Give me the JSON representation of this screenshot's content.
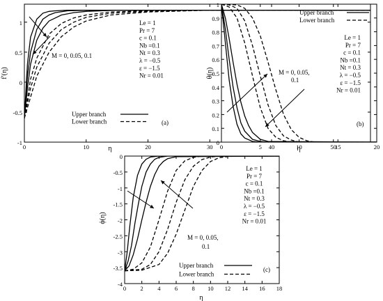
{
  "chart_data": [
    {
      "type": "line",
      "panel_label": "(a)",
      "xlabel": "η",
      "ylabel": "f′(η)",
      "xlim": [
        0,
        56
      ],
      "ylim": [
        -1,
        1.3
      ],
      "xticks": [
        "0",
        "10",
        "20",
        "30",
        "40",
        "50"
      ],
      "yticks": [
        "-1",
        "-0.5",
        "0",
        "0.5",
        "1"
      ],
      "grid": false,
      "legend_position": "bottom-right",
      "legend": [
        "Upper branch",
        "Lower branch"
      ],
      "parameters": [
        "Le = 1",
        "Pr = 7",
        "c = 0.1",
        "Nb =0.1",
        "Nt = 0.3",
        "λ = −0.5",
        "ε = −1.5",
        "Nr = 0.01"
      ],
      "annotations": [
        "M = 0, 0.05, 0.1"
      ],
      "series": [
        {
          "branch": "upper",
          "M": 0,
          "x": [
            0,
            0.5,
            1,
            2,
            3,
            4,
            5,
            7,
            10,
            15,
            25,
            56
          ],
          "y": [
            -0.6,
            0.3,
            0.75,
            1.05,
            1.15,
            1.18,
            1.19,
            1.2,
            1.2,
            1.2,
            1.2,
            1.2
          ]
        },
        {
          "branch": "upper",
          "M": 0.05,
          "x": [
            0,
            0.5,
            1,
            2,
            3,
            4,
            5,
            7,
            10,
            15,
            25,
            56
          ],
          "y": [
            -0.6,
            0.1,
            0.5,
            0.88,
            1.05,
            1.12,
            1.16,
            1.19,
            1.2,
            1.2,
            1.2,
            1.2
          ]
        },
        {
          "branch": "upper",
          "M": 0.1,
          "x": [
            0,
            0.5,
            1,
            2,
            3,
            4,
            6,
            8,
            10,
            15,
            25,
            56
          ],
          "y": [
            -0.6,
            -0.1,
            0.3,
            0.7,
            0.9,
            1.02,
            1.12,
            1.16,
            1.18,
            1.2,
            1.2,
            1.2
          ]
        },
        {
          "branch": "lower",
          "M": 0,
          "x": [
            0,
            1,
            2,
            4,
            6,
            8,
            10,
            14,
            20,
            30,
            56
          ],
          "y": [
            -0.6,
            0.05,
            0.4,
            0.8,
            0.98,
            1.07,
            1.12,
            1.17,
            1.19,
            1.2,
            1.2
          ]
        },
        {
          "branch": "lower",
          "M": 0.05,
          "x": [
            0,
            1,
            2,
            4,
            6,
            8,
            10,
            14,
            20,
            30,
            56
          ],
          "y": [
            -0.6,
            -0.1,
            0.25,
            0.65,
            0.88,
            1.0,
            1.08,
            1.15,
            1.18,
            1.2,
            1.2
          ]
        },
        {
          "branch": "lower",
          "M": 0.1,
          "x": [
            0,
            1,
            2,
            4,
            6,
            8,
            10,
            14,
            20,
            30,
            56
          ],
          "y": [
            -0.6,
            -0.25,
            0.1,
            0.5,
            0.76,
            0.92,
            1.02,
            1.12,
            1.17,
            1.2,
            1.2
          ]
        }
      ]
    },
    {
      "type": "line",
      "panel_label": "(b)",
      "xlabel": "η",
      "ylabel": "θ(η)",
      "xlim": [
        0,
        20
      ],
      "ylim": [
        0,
        1
      ],
      "xticks": [
        "0",
        "5",
        "10",
        "15",
        "20"
      ],
      "yticks": [
        "0",
        "0.1",
        "0.2",
        "0.3",
        "0.4",
        "0.5",
        "0.6",
        "0.7",
        "0.8",
        "0.9",
        "1"
      ],
      "grid": false,
      "legend_position": "top-right",
      "legend": [
        "Upper branch",
        "Lower branch"
      ],
      "parameters": [
        "Le = 1",
        "Pr = 7",
        "c = 0.1",
        "Nb =0.1",
        "Nt = 0.3",
        "λ = −0.5",
        "ε = −1.5",
        "Nr = 0.01"
      ],
      "annotations": [
        "M = 0, 0.05,",
        "0.1"
      ],
      "series": [
        {
          "branch": "upper",
          "M": 0,
          "x": [
            0,
            0.5,
            1,
            1.5,
            2,
            2.5,
            3,
            4,
            5,
            20
          ],
          "y": [
            1,
            0.72,
            0.45,
            0.26,
            0.13,
            0.06,
            0.03,
            0.005,
            0,
            0
          ]
        },
        {
          "branch": "upper",
          "M": 0.05,
          "x": [
            0,
            0.5,
            1,
            1.5,
            2,
            2.5,
            3,
            4,
            5,
            6,
            20
          ],
          "y": [
            1,
            0.82,
            0.6,
            0.4,
            0.25,
            0.14,
            0.08,
            0.02,
            0.005,
            0,
            0
          ]
        },
        {
          "branch": "upper",
          "M": 0.1,
          "x": [
            0,
            0.5,
            1,
            1.5,
            2,
            2.5,
            3,
            3.5,
            4,
            5,
            6,
            20
          ],
          "y": [
            1,
            0.9,
            0.75,
            0.58,
            0.42,
            0.29,
            0.19,
            0.12,
            0.07,
            0.02,
            0.005,
            0
          ]
        },
        {
          "branch": "lower",
          "M": 0,
          "x": [
            0,
            1,
            2,
            3,
            4,
            5,
            6,
            7,
            8,
            9,
            20
          ],
          "y": [
            1,
            0.98,
            0.9,
            0.72,
            0.48,
            0.25,
            0.1,
            0.035,
            0.01,
            0,
            0
          ]
        },
        {
          "branch": "lower",
          "M": 0.05,
          "x": [
            0,
            1,
            2,
            3,
            4,
            5,
            6,
            7,
            8,
            9,
            10,
            20
          ],
          "y": [
            1,
            0.995,
            0.97,
            0.88,
            0.7,
            0.48,
            0.27,
            0.12,
            0.045,
            0.015,
            0,
            0
          ]
        },
        {
          "branch": "lower",
          "M": 0.1,
          "x": [
            0,
            2,
            3,
            4,
            5,
            6,
            7,
            8,
            9,
            10,
            11,
            12,
            20
          ],
          "y": [
            1,
            0.995,
            0.97,
            0.9,
            0.77,
            0.58,
            0.38,
            0.2,
            0.09,
            0.035,
            0.01,
            0,
            0
          ]
        }
      ]
    },
    {
      "type": "line",
      "panel_label": "(c)",
      "xlabel": "η",
      "ylabel": "ϕ(η)",
      "xlim": [
        0,
        18
      ],
      "ylim": [
        -4,
        0
      ],
      "xticks": [
        "0",
        "2",
        "4",
        "6",
        "8",
        "10",
        "12",
        "14",
        "16",
        "18"
      ],
      "yticks": [
        "-4",
        "-3.5",
        "-3",
        "-2.5",
        "-2",
        "-1.5",
        "-1",
        "-0.5",
        "0"
      ],
      "grid": false,
      "legend_position": "bottom-center",
      "legend": [
        "Upper branch",
        "Lower branch"
      ],
      "parameters": [
        "Le = 1",
        "Pr = 7",
        "c = 0.1",
        "Nb =0.1",
        "Nt = 0.3",
        "λ = −0.5",
        "ε = −1.5",
        "Nr = 0.01"
      ],
      "annotations": [
        "M = 0, 0.05,",
        "0.1"
      ],
      "series": [
        {
          "branch": "upper",
          "M": 0,
          "x": [
            0,
            0.3,
            0.6,
            1,
            1.5,
            2,
            2.5,
            3,
            4,
            18
          ],
          "y": [
            -3.6,
            -3.0,
            -2.2,
            -1.3,
            -0.6,
            -0.25,
            -0.1,
            -0.03,
            0,
            0
          ]
        },
        {
          "branch": "upper",
          "M": 0.05,
          "x": [
            0,
            0.4,
            0.8,
            1.2,
            1.6,
            2,
            2.5,
            3,
            3.5,
            4,
            5,
            18
          ],
          "y": [
            -3.6,
            -3.3,
            -2.8,
            -2.1,
            -1.5,
            -0.95,
            -0.5,
            -0.25,
            -0.1,
            -0.04,
            0,
            0
          ]
        },
        {
          "branch": "upper",
          "M": 0.1,
          "x": [
            0,
            0.5,
            1,
            1.5,
            2,
            2.5,
            3,
            3.5,
            4,
            4.5,
            5,
            6,
            18
          ],
          "y": [
            -3.6,
            -3.45,
            -3.1,
            -2.6,
            -2.0,
            -1.45,
            -0.95,
            -0.58,
            -0.32,
            -0.17,
            -0.08,
            -0.02,
            0
          ]
        },
        {
          "branch": "lower",
          "M": 0,
          "x": [
            0,
            1,
            2,
            3,
            4,
            5,
            6,
            7,
            8,
            9,
            18
          ],
          "y": [
            -3.6,
            -3.55,
            -3.35,
            -2.85,
            -2.0,
            -1.1,
            -0.45,
            -0.15,
            -0.04,
            0,
            0
          ]
        },
        {
          "branch": "lower",
          "M": 0.05,
          "x": [
            0,
            2,
            3,
            4,
            5,
            6,
            7,
            8,
            9,
            10,
            11,
            18
          ],
          "y": [
            -3.6,
            -3.55,
            -3.4,
            -3.0,
            -2.3,
            -1.45,
            -0.75,
            -0.32,
            -0.11,
            -0.03,
            0,
            0
          ]
        },
        {
          "branch": "lower",
          "M": 0.1,
          "x": [
            0,
            2,
            4,
            5,
            6,
            7,
            8,
            9,
            10,
            11,
            12,
            13,
            18
          ],
          "y": [
            -3.6,
            -3.58,
            -3.4,
            -3.05,
            -2.45,
            -1.7,
            -0.95,
            -0.45,
            -0.17,
            -0.05,
            -0.015,
            0,
            0
          ]
        }
      ]
    }
  ]
}
